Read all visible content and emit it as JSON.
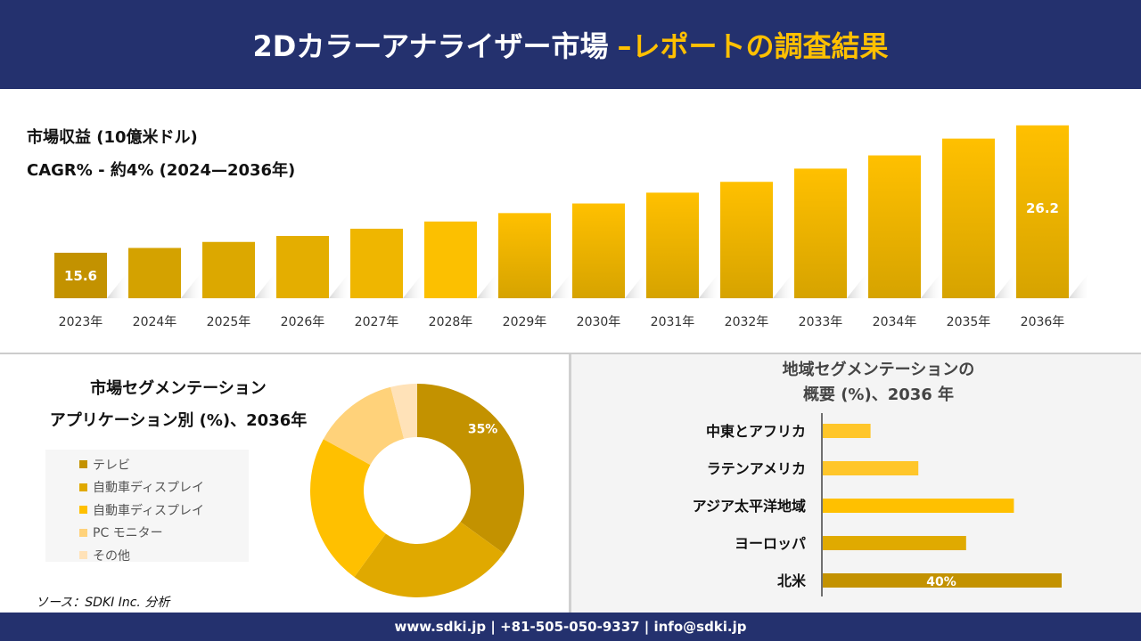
{
  "header": {
    "title": "2Dカラーアナライザー市場",
    "title_accent": "–レポートの調査結果"
  },
  "revenue": {
    "title": "市場収益 (10億米ドル)",
    "cagr": "CAGR% - 約4% (2024—2036年)"
  },
  "chart_data": [
    {
      "type": "bar",
      "categories": [
        "2023年",
        "2024年",
        "2025年",
        "2026年",
        "2027年",
        "2028年",
        "2029年",
        "2030年",
        "2031年",
        "2032年",
        "2033年",
        "2034年",
        "2035年",
        "2036年"
      ],
      "values": [
        15.6,
        16.0,
        16.5,
        17.0,
        17.6,
        18.2,
        18.9,
        19.7,
        20.6,
        21.5,
        22.6,
        23.7,
        25.1,
        26.2
      ],
      "data_labels": {
        "0": "15.6",
        "13": "26.2"
      },
      "colors": [
        "#c39200",
        "#d4a200",
        "#dca800",
        "#e4ae00",
        "#efb600",
        "#fcc000"
      ],
      "gradient": [
        "#ffc000",
        "#d6a300"
      ]
    },
    {
      "type": "pie",
      "donut": true,
      "title": "市場セグメンテーション アプリケーション別 (%)、2036年",
      "labels": [
        "テレビ",
        "自動車ディスプレイ",
        "自動車ディスプレイ",
        "PC モニター",
        "その他"
      ],
      "values": [
        35,
        25,
        23,
        13,
        4
      ],
      "data_labels": [
        "35%",
        "",
        "",
        "",
        ""
      ],
      "colors": [
        "#c39200",
        "#e0a900",
        "#ffc000",
        "#ffd27a",
        "#ffe2b8"
      ],
      "legend": "left"
    },
    {
      "type": "bar",
      "orientation": "horizontal",
      "title": "地域セグメンテーションの 概要 (%)、2036 年",
      "categories": [
        "中東とアフリカ",
        "ラテンアメリカ",
        "アジア太平洋地域",
        "ヨーロッパ",
        "北米"
      ],
      "values": [
        8,
        16,
        32,
        24,
        40
      ],
      "data_labels": [
        "",
        "",
        "",
        "",
        "40%"
      ],
      "colors": [
        "#ffc62a",
        "#ffc62a",
        "#ffc000",
        "#e0aa00",
        "#c39200"
      ]
    }
  ],
  "segment": {
    "title1": "市場セグメンテーション",
    "title2": "アプリケーション別 (%)、2036年"
  },
  "region": {
    "title1": "地域セグメンテーションの",
    "title2": "概要 (%)、2036 年"
  },
  "source": "ソース：SDKI Inc. 分析",
  "footer": "www.sdki.jp | +81-505-050-9337 | info@sdki.jp"
}
